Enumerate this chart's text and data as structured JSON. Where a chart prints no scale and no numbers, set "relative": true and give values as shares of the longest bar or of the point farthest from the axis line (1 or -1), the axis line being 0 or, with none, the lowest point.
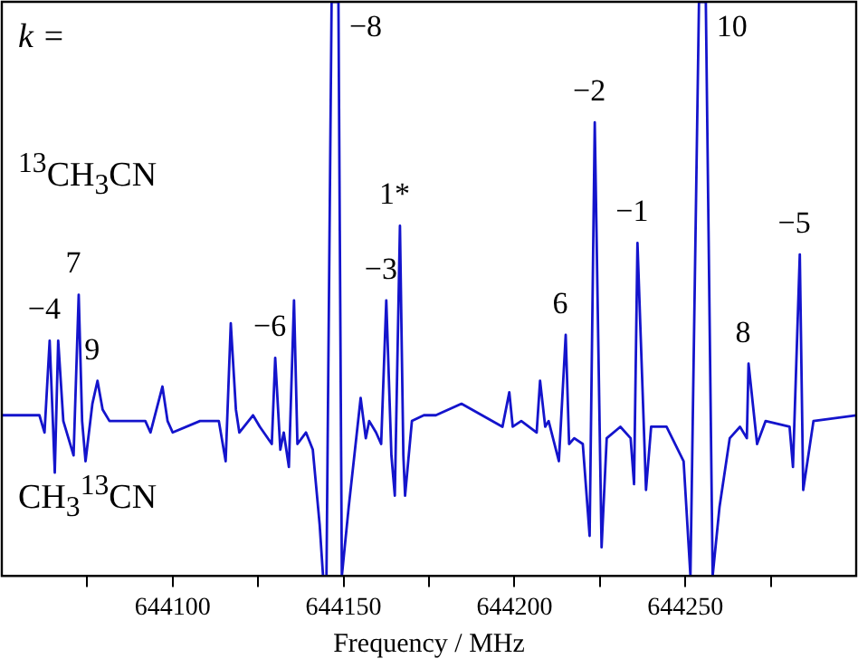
{
  "chart_data": {
    "type": "line",
    "relative": true,
    "xlabel": "Frequency / MHz",
    "xlim": [
      644050,
      644300
    ],
    "xticks": [
      {
        "value": 644075,
        "label": null
      },
      644100,
      {
        "value": 644125,
        "label": null
      },
      644150,
      {
        "value": 644175,
        "label": null
      },
      644200,
      {
        "value": 644225,
        "label": null
      },
      644250,
      {
        "value": 644275,
        "label": null
      }
    ],
    "grid": false,
    "legend": false,
    "marker": "none",
    "line_style": "solid",
    "series": [
      {
        "color": "#1414cc",
        "x": [
          644050,
          644061,
          644062.5,
          644064,
          644065,
          644065.5,
          644066.5,
          644068,
          644071,
          644072.5,
          644073.5,
          644074.5,
          644076.5,
          644078,
          644079.5,
          644081.5,
          644092,
          644093.5,
          644097,
          644098.5,
          644100,
          644108,
          644113.5,
          644115.5,
          644117,
          644118.5,
          644119.5,
          644123.5,
          644125.5,
          644129,
          644130,
          644131.5,
          644132.5,
          644134,
          644135.5,
          644136.5,
          644139,
          644141,
          644143,
          644144,
          644145,
          644146.5,
          644148.5,
          644149.5,
          644151.5,
          644155,
          644156.5,
          644157.5,
          644159.5,
          644161,
          644162.5,
          644164,
          644165,
          644166.5,
          644167.5,
          644168,
          644170,
          644173.5,
          644177,
          644184.5,
          644196.5,
          644198.5,
          644199.5,
          644202,
          644206.5,
          644207.5,
          644209,
          644210,
          644213,
          644215,
          644216,
          644217.5,
          644220,
          644222,
          644223.5,
          644225.5,
          644227,
          644231,
          644234,
          644235,
          644236,
          644238.5,
          644240,
          644244.5,
          644249.5,
          644251.5,
          644254,
          644256,
          644258,
          644260,
          644263,
          644266,
          644268,
          644268.5,
          644271,
          644273.5,
          644280.5,
          644281.5,
          644283.5,
          644284.5,
          644287.5,
          644300
        ],
        "values": [
          0.28,
          0.28,
          0.25,
          0.41,
          0.26,
          0.18,
          0.41,
          0.27,
          0.21,
          0.49,
          0.27,
          0.2,
          0.3,
          0.34,
          0.29,
          0.27,
          0.27,
          0.25,
          0.33,
          0.27,
          0.25,
          0.27,
          0.27,
          0.2,
          0.44,
          0.29,
          0.25,
          0.28,
          0.26,
          0.23,
          0.38,
          0.22,
          0.25,
          0.19,
          0.48,
          0.23,
          0.25,
          0.22,
          0.09,
          0,
          0,
          1,
          1,
          0,
          0.12,
          0.31,
          0.24,
          0.27,
          0.25,
          0.23,
          0.48,
          0.21,
          0.14,
          0.61,
          0.21,
          0.14,
          0.27,
          0.28,
          0.28,
          0.3,
          0.26,
          0.32,
          0.26,
          0.27,
          0.25,
          0.34,
          0.26,
          0.27,
          0.2,
          0.42,
          0.23,
          0.24,
          0.23,
          0.07,
          0.79,
          0.05,
          0.24,
          0.26,
          0.24,
          0.16,
          0.58,
          0.15,
          0.26,
          0.26,
          0.2,
          0,
          1,
          1,
          0,
          0.12,
          0.24,
          0.26,
          0.24,
          0.37,
          0.23,
          0.27,
          0.26,
          0.19,
          0.56,
          0.15,
          0.27,
          0.28
        ]
      }
    ],
    "annotations": [
      "k =",
      "$^{13}$CH$_{3}$CN",
      "CH$_{3}$$^{13}$CN",
      {
        "text": "−8",
        "x": 644148.5,
        "y": 1
      },
      {
        "text": "10",
        "x": 644256,
        "y": 1
      },
      {
        "text": "−4",
        "x": 644064,
        "y": 0.41
      },
      {
        "text": "7",
        "x": 644072.5,
        "y": 0.49
      },
      {
        "text": "9",
        "x": 644078,
        "y": 0.34
      },
      {
        "text": "−6",
        "x": 644130,
        "y": 0.38
      },
      {
        "text": "−3",
        "x": 644162.5,
        "y": 0.48
      },
      {
        "text": "1*",
        "x": 644166.5,
        "y": 0.61
      },
      {
        "text": "6",
        "x": 644215,
        "y": 0.42
      },
      {
        "text": "−2",
        "x": 644223.5,
        "y": 0.79
      },
      {
        "text": "−1",
        "x": 644236,
        "y": 0.58
      },
      {
        "text": "8",
        "x": 644268.5,
        "y": 0.37
      },
      {
        "text": "−5",
        "x": 644283.5,
        "y": 0.56
      }
    ]
  }
}
